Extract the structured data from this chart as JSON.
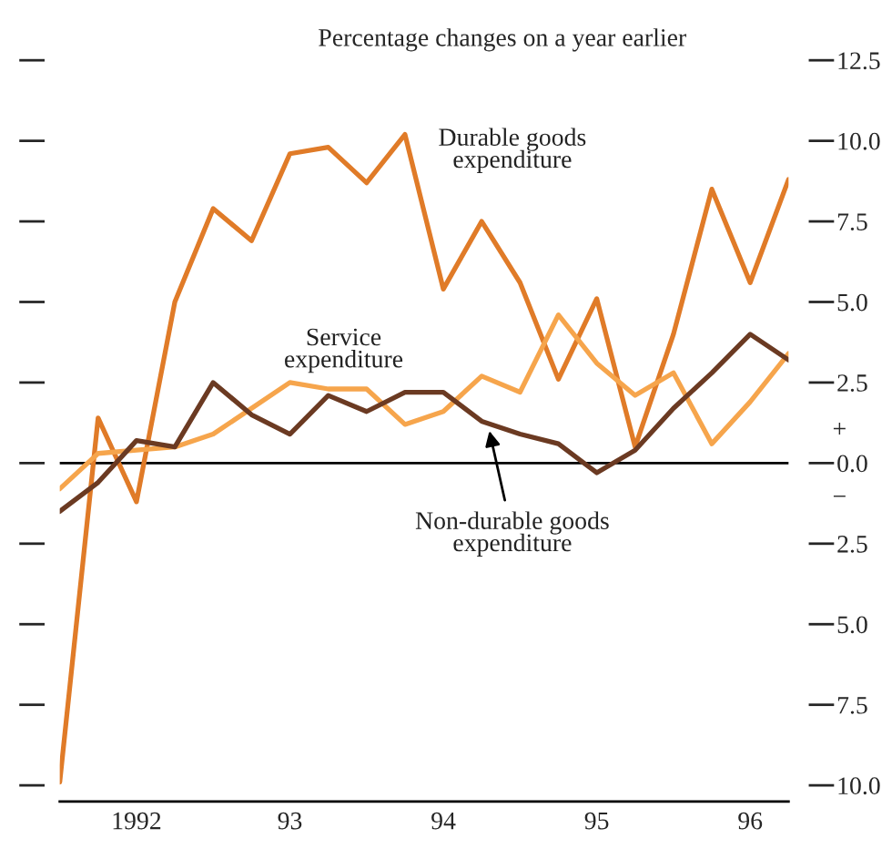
{
  "chart_data": {
    "type": "line",
    "title": "Percentage changes on a year earlier",
    "categories": [
      null,
      null,
      "1992",
      null,
      null,
      null,
      "93",
      null,
      null,
      null,
      "94",
      null,
      null,
      null,
      "95",
      null,
      null,
      null,
      "96",
      null
    ],
    "series": [
      {
        "name": "Durable goods\nexpenditure",
        "color": "#e07b28",
        "values": [
          -9.9,
          1.4,
          -1.2,
          5.0,
          7.9,
          6.9,
          9.6,
          9.8,
          8.7,
          10.2,
          5.4,
          7.5,
          5.6,
          2.6,
          5.1,
          0.5,
          4.0,
          8.5,
          5.6,
          8.8
        ]
      },
      {
        "name": "Service\nexpenditure",
        "color": "#f6a54c",
        "values": [
          -0.8,
          0.3,
          0.4,
          0.5,
          0.9,
          1.7,
          2.5,
          2.3,
          2.3,
          1.2,
          1.6,
          2.7,
          2.2,
          4.6,
          3.1,
          2.1,
          2.8,
          0.6,
          1.9,
          3.4
        ]
      },
      {
        "name": "Non-durable goods\nexpenditure",
        "color": "#6b3a22",
        "values": [
          -1.5,
          -0.6,
          0.7,
          0.5,
          2.5,
          1.5,
          0.9,
          2.1,
          1.6,
          2.2,
          2.2,
          1.3,
          0.9,
          0.6,
          -0.3,
          0.4,
          1.7,
          2.8,
          4.0,
          3.2
        ]
      }
    ],
    "ylim": [
      -10.5,
      12.5
    ],
    "yticks": [
      {
        "value": -10.0,
        "label": "10.0"
      },
      {
        "value": -7.5,
        "label": "7.5"
      },
      {
        "value": -5.0,
        "label": "5.0"
      },
      {
        "value": -2.5,
        "label": "2.5"
      },
      {
        "value": 0.0,
        "label": "0.0"
      },
      {
        "value": 2.5,
        "label": "2.5"
      },
      {
        "value": 5.0,
        "label": "5.0"
      },
      {
        "value": 7.5,
        "label": "7.5"
      },
      {
        "value": 10.0,
        "label": "10.0"
      },
      {
        "value": 12.5,
        "label": "12.5"
      }
    ],
    "ref_lines": [
      {
        "axis": "y",
        "value": 0,
        "color": "#000000"
      }
    ],
    "annotations": [
      "+",
      "−"
    ],
    "grid": false,
    "legend": false,
    "marker": "none",
    "line_style": "solid"
  }
}
